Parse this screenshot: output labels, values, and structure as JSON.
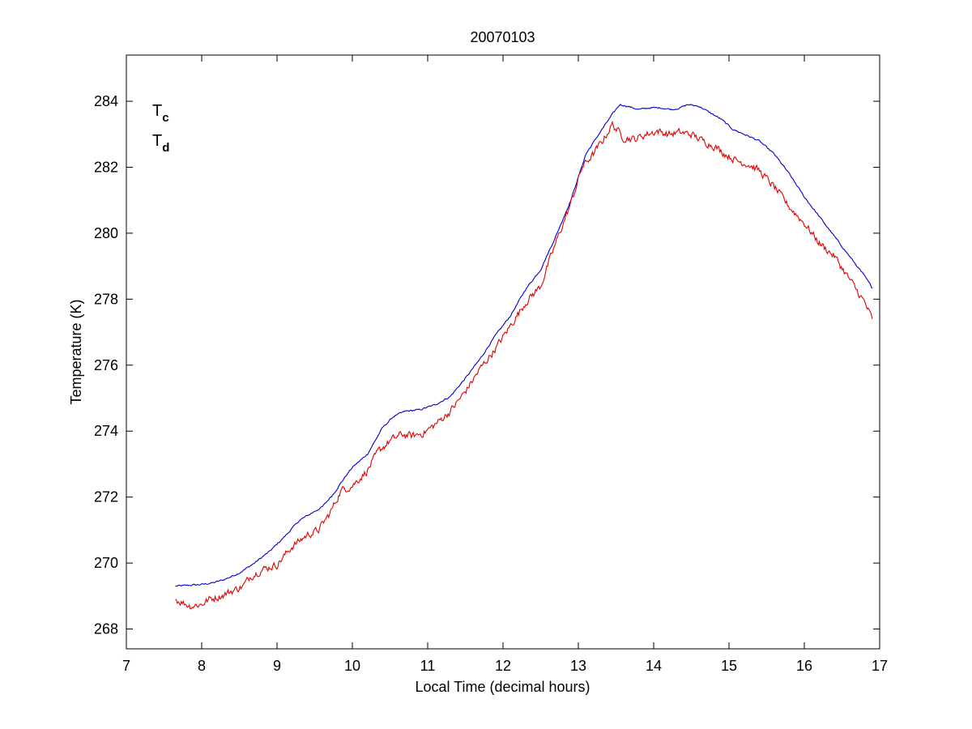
{
  "chart_data": {
    "type": "line",
    "title": "20070103",
    "xlabel": "Local Time (decimal hours)",
    "ylabel": "Temperature (K)",
    "xlim": [
      7,
      17
    ],
    "ylim": [
      267.4,
      285.4
    ],
    "xticks": [
      7,
      8,
      9,
      10,
      11,
      12,
      13,
      14,
      15,
      16,
      17
    ],
    "yticks": [
      268,
      270,
      272,
      274,
      276,
      278,
      280,
      282,
      284
    ],
    "xtick_labels": [
      "7",
      "8",
      "9",
      "10",
      "11",
      "12",
      "13",
      "14",
      "15",
      "16",
      "17"
    ],
    "ytick_labels": [
      "268",
      "270",
      "272",
      "274",
      "276",
      "278",
      "280",
      "282",
      "284"
    ],
    "grid": false,
    "legend": {
      "placement": "top-left",
      "entries": [
        {
          "main": "T",
          "sub": "c",
          "color": "#0000cc"
        },
        {
          "main": "T",
          "sub": "d",
          "color": "#e00000"
        }
      ]
    },
    "series": [
      {
        "color": "#0000cc",
        "noise": 0.04,
        "x": [
          7.65,
          7.8,
          8.0,
          8.15,
          8.3,
          8.5,
          8.7,
          8.9,
          9.1,
          9.3,
          9.45,
          9.6,
          9.75,
          9.9,
          10.0,
          10.2,
          10.4,
          10.55,
          10.7,
          10.9,
          11.1,
          11.3,
          11.5,
          11.7,
          11.9,
          12.1,
          12.3,
          12.5,
          12.7,
          12.9,
          13.1,
          13.3,
          13.45,
          13.55,
          13.65,
          13.8,
          13.95,
          14.1,
          14.25,
          14.35,
          14.45,
          14.6,
          14.75,
          14.9,
          15.05,
          15.2,
          15.4,
          15.6,
          15.8,
          16.0,
          16.2,
          16.4,
          16.6,
          16.8,
          16.9
        ],
        "y": [
          269.3,
          269.32,
          269.35,
          269.4,
          269.5,
          269.7,
          270.0,
          270.35,
          270.8,
          271.3,
          271.5,
          271.7,
          272.1,
          272.6,
          272.9,
          273.3,
          274.1,
          274.45,
          274.6,
          274.65,
          274.8,
          275.05,
          275.6,
          276.2,
          276.9,
          277.5,
          278.3,
          278.9,
          279.9,
          281.0,
          282.4,
          283.1,
          283.6,
          283.9,
          283.85,
          283.75,
          283.8,
          283.8,
          283.75,
          283.8,
          283.9,
          283.85,
          283.65,
          283.45,
          283.15,
          283.0,
          282.8,
          282.4,
          281.8,
          281.1,
          280.5,
          279.9,
          279.3,
          278.7,
          278.35
        ]
      },
      {
        "color": "#e00000",
        "noise": 0.18,
        "x": [
          7.65,
          7.75,
          7.85,
          8.0,
          8.1,
          8.25,
          8.4,
          8.55,
          8.65,
          8.8,
          9.0,
          9.2,
          9.4,
          9.55,
          9.7,
          9.85,
          10.0,
          10.2,
          10.35,
          10.5,
          10.65,
          10.8,
          10.95,
          11.1,
          11.3,
          11.5,
          11.7,
          11.9,
          12.1,
          12.3,
          12.5,
          12.7,
          12.9,
          13.05,
          13.2,
          13.35,
          13.45,
          13.6,
          13.75,
          13.9,
          14.05,
          14.2,
          14.35,
          14.5,
          14.65,
          14.8,
          14.95,
          15.1,
          15.25,
          15.4,
          15.6,
          15.8,
          16.0,
          16.2,
          16.4,
          16.6,
          16.8,
          16.9
        ],
        "y": [
          268.9,
          268.8,
          268.7,
          268.75,
          268.9,
          269.0,
          269.15,
          269.3,
          269.6,
          269.8,
          269.95,
          270.5,
          270.85,
          271.0,
          271.5,
          272.2,
          272.35,
          272.8,
          273.4,
          273.7,
          273.9,
          273.85,
          273.95,
          274.2,
          274.6,
          275.2,
          275.9,
          276.5,
          277.2,
          277.9,
          278.4,
          279.7,
          280.9,
          282.0,
          282.4,
          282.9,
          283.3,
          282.9,
          282.85,
          283.0,
          283.1,
          283.0,
          283.05,
          283.0,
          282.8,
          282.65,
          282.4,
          282.2,
          282.1,
          281.9,
          281.4,
          280.8,
          280.3,
          279.7,
          279.3,
          278.6,
          277.9,
          277.4
        ]
      }
    ]
  }
}
